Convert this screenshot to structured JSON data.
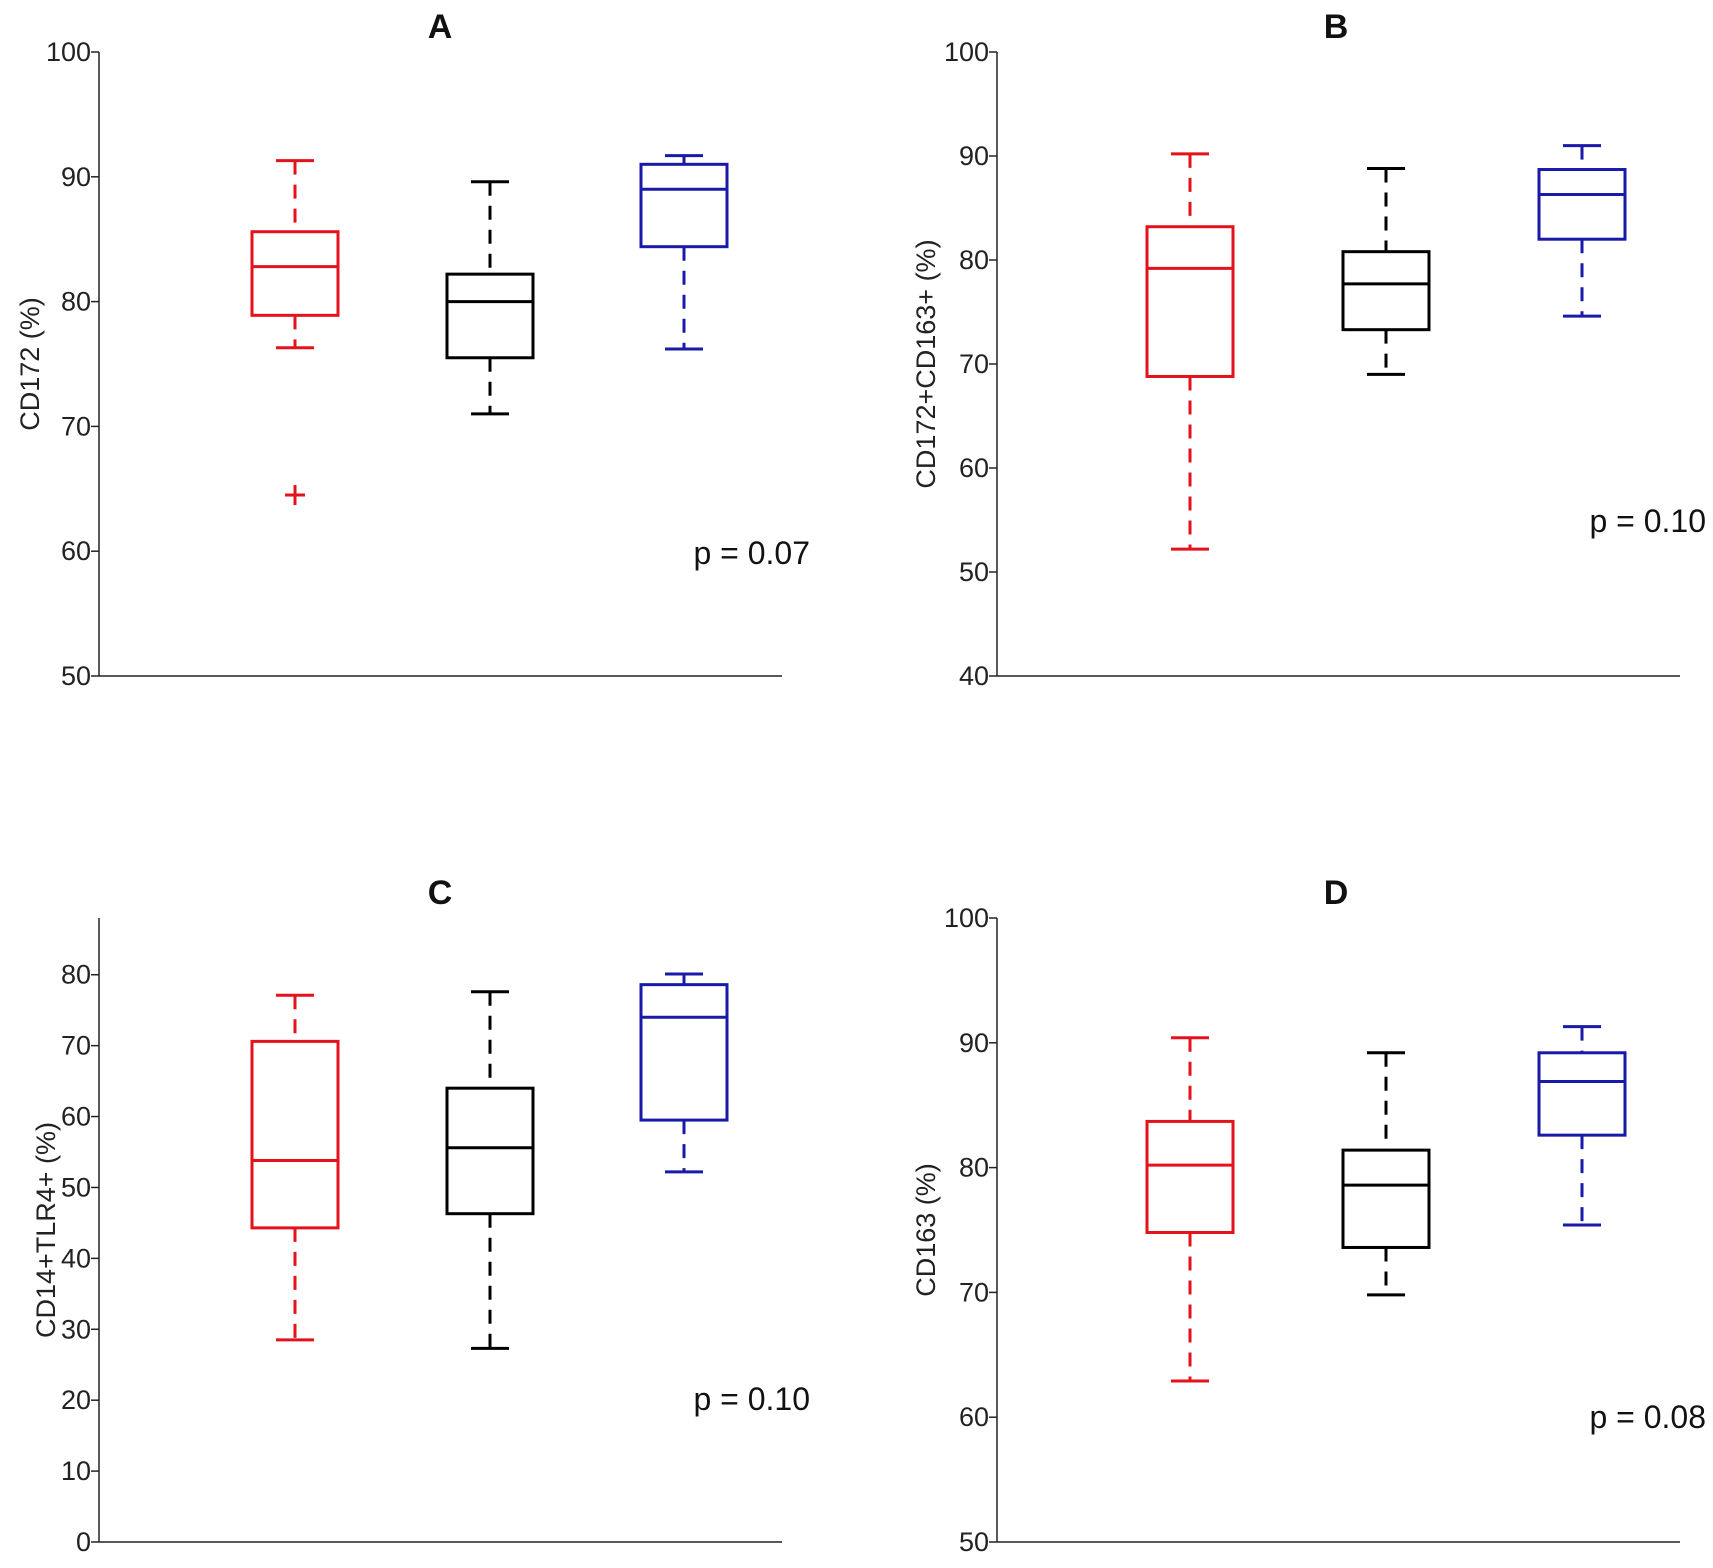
{
  "figure": {
    "layout": "2x2 grid"
  },
  "chart_data": [
    {
      "panel": "A",
      "type": "box",
      "title": "A",
      "ylabel": "CD172 (%)",
      "ylim": [
        50,
        100
      ],
      "yticks": [
        50,
        60,
        70,
        80,
        90,
        100
      ],
      "pvalue": "p = 0.07",
      "boxes": [
        {
          "color": "#e3121b",
          "whisker_low": 76.3,
          "q1": 78.9,
          "median": 82.8,
          "q3": 85.6,
          "whisker_high": 91.3,
          "outliers": [
            64.5
          ]
        },
        {
          "color": "#000000",
          "whisker_low": 71.0,
          "q1": 75.5,
          "median": 80.0,
          "q3": 82.2,
          "whisker_high": 89.6,
          "outliers": []
        },
        {
          "color": "#1a1aa8",
          "whisker_low": 76.2,
          "q1": 84.4,
          "median": 89.0,
          "q3": 91.0,
          "whisker_high": 91.7,
          "outliers": []
        }
      ]
    },
    {
      "panel": "B",
      "type": "box",
      "title": "B",
      "ylabel": "CD172+CD163+ (%)",
      "ylim": [
        40,
        100
      ],
      "yticks": [
        40,
        50,
        60,
        70,
        80,
        90,
        100
      ],
      "pvalue": "p = 0.10",
      "boxes": [
        {
          "color": "#e3121b",
          "whisker_low": 52.2,
          "q1": 68.8,
          "median": 79.2,
          "q3": 83.2,
          "whisker_high": 90.2,
          "outliers": []
        },
        {
          "color": "#000000",
          "whisker_low": 69.0,
          "q1": 73.3,
          "median": 77.7,
          "q3": 80.8,
          "whisker_high": 88.8,
          "outliers": []
        },
        {
          "color": "#1a1aa8",
          "whisker_low": 74.6,
          "q1": 82.0,
          "median": 86.3,
          "q3": 88.7,
          "whisker_high": 91.0,
          "outliers": []
        }
      ]
    },
    {
      "panel": "C",
      "type": "box",
      "title": "C",
      "ylabel": "CD14+TLR4+ (%)",
      "ylim": [
        0,
        88
      ],
      "yticks": [
        0,
        10,
        20,
        30,
        40,
        50,
        60,
        70,
        80
      ],
      "pvalue": "p = 0.10",
      "boxes": [
        {
          "color": "#e3121b",
          "whisker_low": 28.5,
          "q1": 44.3,
          "median": 53.8,
          "q3": 70.6,
          "whisker_high": 77.1,
          "outliers": []
        },
        {
          "color": "#000000",
          "whisker_low": 27.3,
          "q1": 46.3,
          "median": 55.6,
          "q3": 64.0,
          "whisker_high": 77.6,
          "outliers": []
        },
        {
          "color": "#1a1aa8",
          "whisker_low": 52.2,
          "q1": 59.5,
          "median": 74.0,
          "q3": 78.6,
          "whisker_high": 80.1,
          "outliers": []
        }
      ]
    },
    {
      "panel": "D",
      "type": "box",
      "title": "D",
      "ylabel": "CD163 (%)",
      "ylim": [
        50,
        100
      ],
      "yticks": [
        50,
        60,
        70,
        80,
        90,
        100
      ],
      "pvalue": "p = 0.08",
      "boxes": [
        {
          "color": "#e3121b",
          "whisker_low": 62.9,
          "q1": 74.8,
          "median": 80.2,
          "q3": 83.7,
          "whisker_high": 90.4,
          "outliers": []
        },
        {
          "color": "#000000",
          "whisker_low": 69.8,
          "q1": 73.6,
          "median": 78.6,
          "q3": 81.4,
          "whisker_high": 89.2,
          "outliers": []
        },
        {
          "color": "#1a1aa8",
          "whisker_low": 75.4,
          "q1": 82.6,
          "median": 86.9,
          "q3": 89.2,
          "whisker_high": 91.3,
          "outliers": []
        }
      ]
    }
  ]
}
